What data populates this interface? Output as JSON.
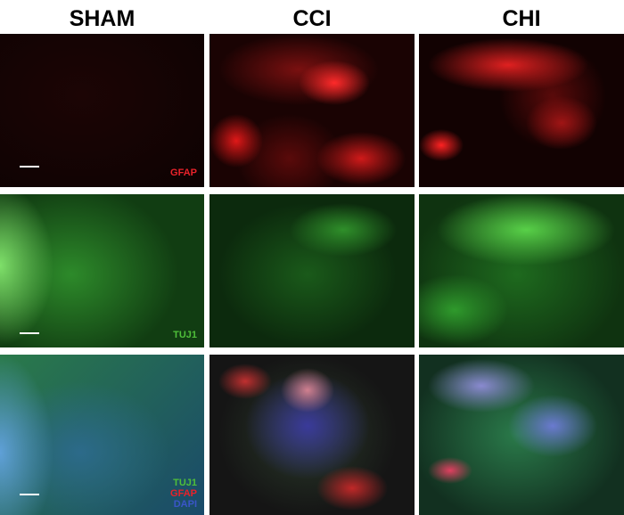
{
  "columns": [
    "SHAM",
    "CCI",
    "CHI"
  ],
  "labels": {
    "gfap": "GFAP",
    "tuj1": "TUJ1",
    "dapi": "DAPI"
  },
  "colors": {
    "gfap": "#e8222a",
    "tuj1": "#4fbf3a",
    "dapi": "#3a55c8"
  }
}
